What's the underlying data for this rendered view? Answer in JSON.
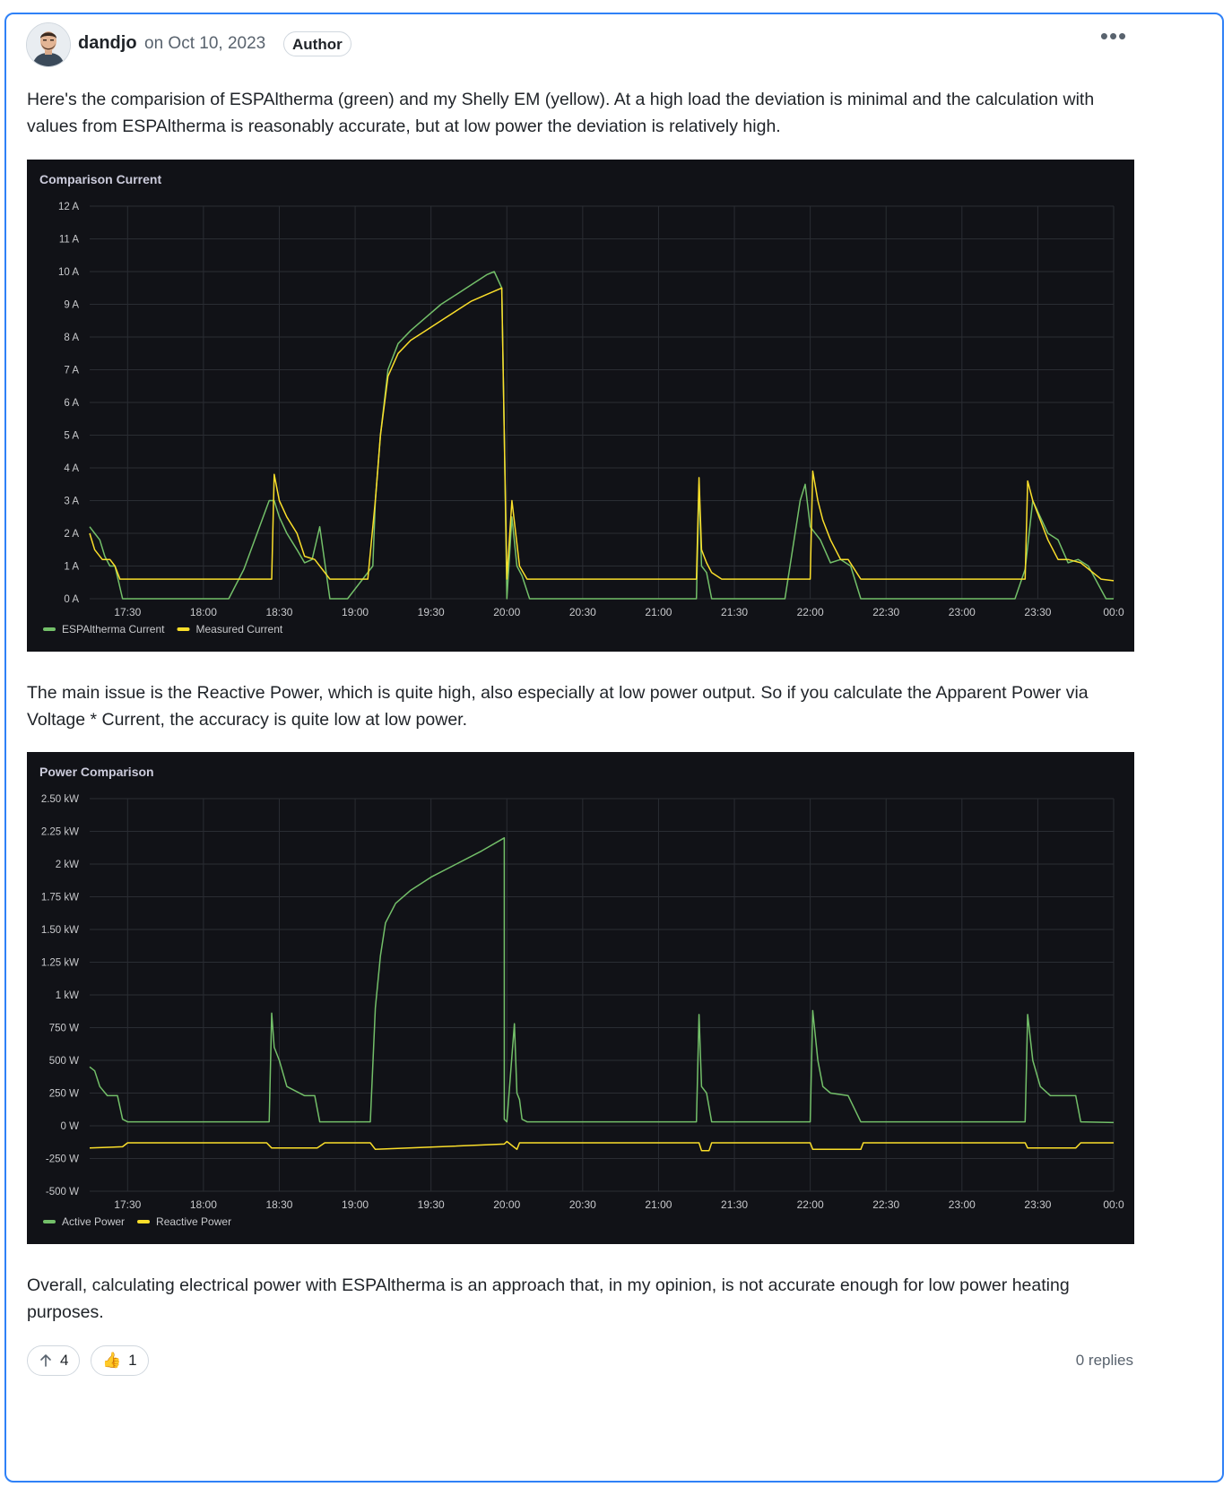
{
  "post": {
    "author": "dandjo",
    "date": "on Oct 10, 2023",
    "badge": "Author",
    "menu_glyph": "•••",
    "para1": "Here's the comparision of ESPAltherma (green) and my Shelly EM (yellow). At a high load the deviation is minimal and the calculation with values from ESPAltherma is reasonably accurate, but at low power the deviation is relatively high.",
    "para2": "The main issue is the Reactive Power, which is quite high, also especially at low power output. So if you calculate the Apparent Power via Voltage * Current, the accuracy is quite low at low power.",
    "para3": "Overall, calculating electrical power with ESPAltherma is an approach that, in my opinion, is not accurate enough for low power heating purposes.",
    "upvote_icon": "arrow-up-icon",
    "upvote_count": "4",
    "reaction_emoji": "👍",
    "reaction_count": "1",
    "replies": "0 replies"
  },
  "colors": {
    "green": "#73bf69",
    "yellow": "#fade2a",
    "chart_bg": "#111217",
    "grid": "#2a2d33",
    "tick": "#c8c9cc",
    "accent": "#2f81f7"
  },
  "chart_data": [
    {
      "type": "line",
      "title": "Comparison Current",
      "x_ticks": [
        "17:30",
        "18:00",
        "18:30",
        "19:00",
        "19:30",
        "20:00",
        "20:30",
        "21:00",
        "21:30",
        "22:00",
        "22:30",
        "23:00",
        "23:30",
        "00:0"
      ],
      "y_ticks": [
        "0 A",
        "1 A",
        "2 A",
        "3 A",
        "4 A",
        "5 A",
        "6 A",
        "7 A",
        "8 A",
        "9 A",
        "10 A",
        "11 A",
        "12 A"
      ],
      "ylim": [
        0,
        12
      ],
      "xlim": [
        "17:15",
        "00:00"
      ],
      "series": [
        {
          "name": "ESPAltherma Current",
          "color": "#73bf69",
          "x": [
            "17:15",
            "17:17",
            "17:19",
            "17:21",
            "17:23",
            "17:25",
            "17:28",
            "17:40",
            "18:10",
            "18:16",
            "18:26",
            "18:28",
            "18:30",
            "18:33",
            "18:37",
            "18:40",
            "18:43",
            "18:46",
            "18:50",
            "18:57",
            "19:07",
            "19:08",
            "19:10",
            "19:13",
            "19:17",
            "19:22",
            "19:28",
            "19:34",
            "19:40",
            "19:46",
            "19:52",
            "19:55",
            "19:58",
            "19:59",
            "20:00",
            "20:02",
            "20:04",
            "20:06",
            "20:09",
            "20:16",
            "21:00",
            "21:15",
            "21:16",
            "21:17",
            "21:19",
            "21:21",
            "21:25",
            "21:30",
            "21:50",
            "21:56",
            "21:58",
            "22:00",
            "22:04",
            "22:08",
            "22:12",
            "22:16",
            "22:20",
            "23:00",
            "23:21",
            "23:25",
            "23:28",
            "23:31",
            "23:34",
            "23:38",
            "23:42",
            "23:46",
            "23:50",
            "23:57",
            "00:00"
          ],
          "y": [
            2.2,
            2.0,
            1.8,
            1.3,
            1.0,
            1.0,
            0.0,
            0.0,
            0.0,
            0.9,
            3.0,
            3.0,
            2.5,
            2.0,
            1.5,
            1.1,
            1.2,
            2.2,
            0.0,
            0.0,
            1.0,
            3.0,
            5.0,
            7.0,
            7.8,
            8.2,
            8.6,
            9.0,
            9.3,
            9.6,
            9.9,
            10.0,
            9.5,
            5.0,
            0.0,
            2.5,
            1.0,
            0.7,
            0.0,
            0.0,
            0.0,
            0.0,
            3.5,
            1.0,
            0.8,
            0.0,
            0.0,
            0.0,
            0.0,
            3.0,
            3.5,
            2.2,
            1.8,
            1.1,
            1.2,
            1.0,
            0.0,
            0.0,
            0.0,
            0.9,
            3.0,
            2.5,
            2.0,
            1.8,
            1.1,
            1.2,
            1.0,
            0.0,
            0.0
          ]
        },
        {
          "name": "Measured Current",
          "color": "#fade2a",
          "x": [
            "17:15",
            "17:17",
            "17:20",
            "17:23",
            "17:25",
            "17:27",
            "18:27",
            "18:28",
            "18:30",
            "18:33",
            "18:37",
            "18:40",
            "18:44",
            "18:50",
            "19:05",
            "19:08",
            "19:10",
            "19:13",
            "19:17",
            "19:22",
            "19:28",
            "19:34",
            "19:40",
            "19:46",
            "19:52",
            "19:58",
            "19:59",
            "20:00",
            "20:02",
            "20:05",
            "20:08",
            "21:15",
            "21:16",
            "21:17",
            "21:19",
            "21:21",
            "21:25",
            "22:00",
            "22:01",
            "22:03",
            "22:05",
            "22:08",
            "22:12",
            "22:15",
            "22:20",
            "23:25",
            "23:26",
            "23:28",
            "23:31",
            "23:34",
            "23:38",
            "23:42",
            "23:47",
            "23:55",
            "00:00"
          ],
          "y": [
            2.0,
            1.5,
            1.2,
            1.2,
            1.0,
            0.6,
            0.6,
            3.8,
            3.0,
            2.5,
            2.0,
            1.3,
            1.2,
            0.6,
            0.6,
            3.0,
            5.0,
            6.8,
            7.5,
            7.9,
            8.2,
            8.5,
            8.8,
            9.1,
            9.3,
            9.5,
            5.0,
            0.6,
            3.0,
            1.0,
            0.6,
            0.6,
            3.7,
            1.5,
            1.1,
            0.8,
            0.6,
            0.6,
            3.9,
            3.0,
            2.4,
            1.8,
            1.2,
            1.2,
            0.6,
            0.6,
            3.6,
            3.0,
            2.4,
            1.8,
            1.2,
            1.2,
            1.1,
            0.6,
            0.55
          ]
        }
      ],
      "legend": "bottom-left"
    },
    {
      "type": "line",
      "title": "Power Comparison",
      "x_ticks": [
        "17:30",
        "18:00",
        "18:30",
        "19:00",
        "19:30",
        "20:00",
        "20:30",
        "21:00",
        "21:30",
        "22:00",
        "22:30",
        "23:00",
        "23:30",
        "00:0"
      ],
      "y_ticks": [
        "-500 W",
        "-250 W",
        "0 W",
        "250 W",
        "500 W",
        "750 W",
        "1 kW",
        "1.25 kW",
        "1.50 kW",
        "1.75 kW",
        "2 kW",
        "2.25 kW",
        "2.50 kW"
      ],
      "ylim": [
        -500,
        2500
      ],
      "xlim": [
        "17:15",
        "00:00"
      ],
      "series": [
        {
          "name": "Active Power",
          "color": "#73bf69",
          "x": [
            "17:15",
            "17:17",
            "17:19",
            "17:22",
            "17:26",
            "17:28",
            "17:30",
            "18:26",
            "18:27",
            "18:28",
            "18:30",
            "18:33",
            "18:40",
            "18:44",
            "18:46",
            "19:06",
            "19:08",
            "19:10",
            "19:12",
            "19:16",
            "19:22",
            "19:30",
            "19:40",
            "19:50",
            "19:59",
            "19:59",
            "20:00",
            "20:03",
            "20:04",
            "20:05",
            "20:06",
            "20:08",
            "21:15",
            "21:16",
            "21:17",
            "21:19",
            "21:21",
            "21:30",
            "22:00",
            "22:01",
            "22:03",
            "22:05",
            "22:08",
            "22:15",
            "22:20",
            "23:25",
            "23:26",
            "23:28",
            "23:31",
            "23:35",
            "23:45",
            "23:47",
            "00:00"
          ],
          "y": [
            450,
            420,
            300,
            230,
            230,
            50,
            30,
            30,
            860,
            600,
            500,
            300,
            230,
            230,
            30,
            30,
            900,
            1300,
            1550,
            1700,
            1800,
            1900,
            2000,
            2100,
            2200,
            50,
            30,
            780,
            250,
            200,
            50,
            30,
            30,
            850,
            300,
            250,
            30,
            30,
            30,
            880,
            500,
            300,
            250,
            230,
            30,
            30,
            850,
            500,
            300,
            230,
            230,
            30,
            25
          ]
        },
        {
          "name": "Reactive Power",
          "color": "#fade2a",
          "x": [
            "17:15",
            "17:28",
            "17:30",
            "18:25",
            "18:27",
            "18:45",
            "18:48",
            "19:06",
            "19:08",
            "19:59",
            "20:00",
            "20:04",
            "20:05",
            "21:16",
            "21:17",
            "21:20",
            "21:21",
            "22:00",
            "22:01",
            "22:20",
            "22:21",
            "23:25",
            "23:26",
            "23:45",
            "23:47",
            "00:00"
          ],
          "y": [
            -170,
            -160,
            -130,
            -130,
            -170,
            -170,
            -130,
            -130,
            -180,
            -140,
            -120,
            -180,
            -130,
            -130,
            -190,
            -190,
            -130,
            -130,
            -180,
            -180,
            -130,
            -130,
            -170,
            -170,
            -130,
            -130
          ]
        }
      ],
      "legend": "bottom-left"
    }
  ]
}
